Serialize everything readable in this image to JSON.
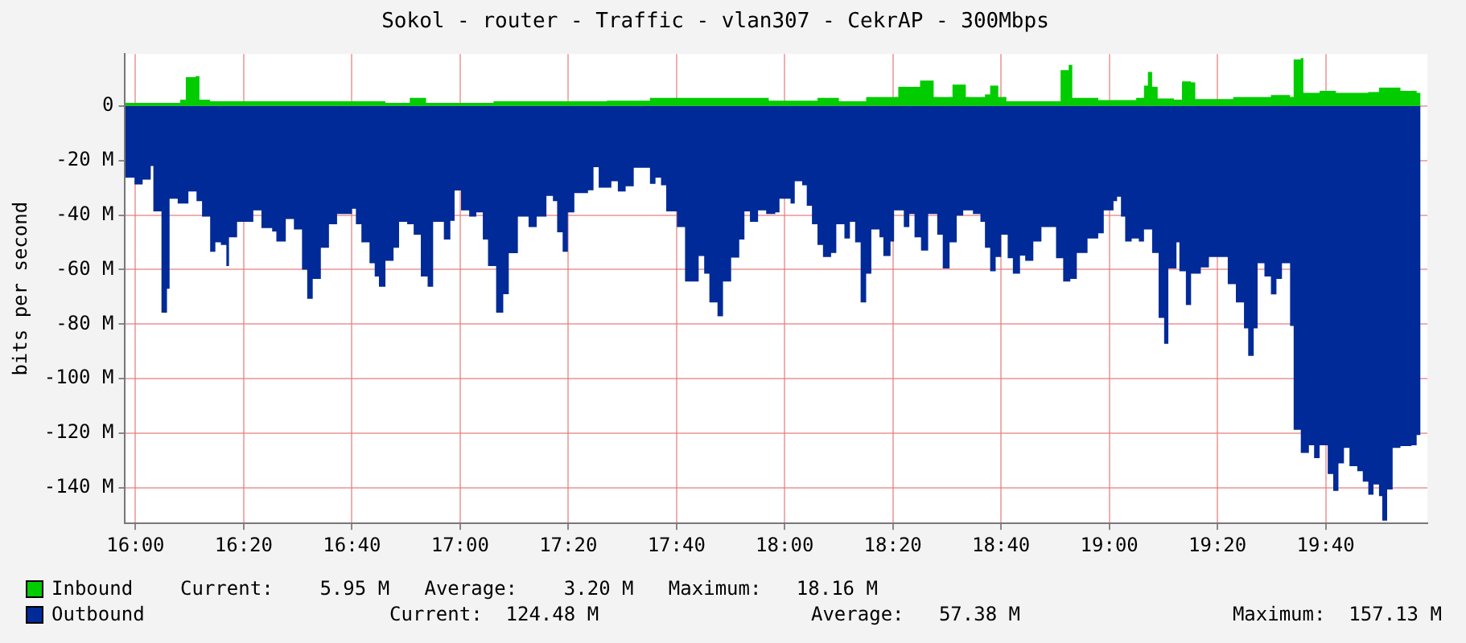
{
  "chart_data": {
    "type": "area",
    "title": "Sokol - router - Traffic - vlan307 - CekrAP - 300Mbps",
    "ylabel": "bits per second",
    "xlim": [
      15.968,
      19.98
    ],
    "ylim": [
      -153,
      19
    ],
    "xticks": [
      {
        "value": 16,
        "label": "16:00"
      },
      {
        "value": 16.3333,
        "label": "16:20"
      },
      {
        "value": 16.6667,
        "label": "16:40"
      },
      {
        "value": 17,
        "label": "17:00"
      },
      {
        "value": 17.3333,
        "label": "17:20"
      },
      {
        "value": 17.6667,
        "label": "17:40"
      },
      {
        "value": 18,
        "label": "18:00"
      },
      {
        "value": 18.3333,
        "label": "18:20"
      },
      {
        "value": 18.6667,
        "label": "18:40"
      },
      {
        "value": 19,
        "label": "19:00"
      },
      {
        "value": 19.3333,
        "label": "19:20"
      },
      {
        "value": 19.6667,
        "label": "19:40"
      }
    ],
    "yticks": [
      {
        "value": -140,
        "label": "-140 M"
      },
      {
        "value": -120,
        "label": "-120 M"
      },
      {
        "value": -100,
        "label": "-100 M"
      },
      {
        "value": -80,
        "label": "-80 M"
      },
      {
        "value": -60,
        "label": "-60 M"
      },
      {
        "value": -40,
        "label": "-40 M"
      },
      {
        "value": -20,
        "label": "-20 M"
      },
      0
    ],
    "grid": true,
    "legend": "bottom",
    "series": [
      {
        "name": "Inbound",
        "color": "#00cc00",
        "x": [
          15.969,
          16.122,
          16.138,
          16.155,
          16.185,
          16.197,
          16.23,
          16.488,
          16.77,
          16.845,
          16.87,
          16.895,
          17.103,
          17.269,
          17.452,
          17.585,
          17.752,
          17.951,
          18.101,
          18.167,
          18.251,
          18.334,
          18.35,
          18.417,
          18.459,
          18.517,
          18.558,
          18.617,
          18.633,
          18.658,
          18.683,
          18.833,
          18.85,
          18.875,
          18.886,
          18.966,
          19.083,
          19.107,
          19.119,
          19.132,
          19.149,
          19.199,
          19.224,
          19.252,
          19.265,
          19.382,
          19.498,
          19.557,
          19.568,
          19.59,
          19.598,
          19.648,
          19.698,
          19.798,
          19.831,
          19.897,
          19.947,
          19.959
        ],
        "values": [
          1.1,
          1.1,
          2.3,
          10.5,
          10.9,
          2.3,
          1.7,
          1.7,
          1.1,
          2.9,
          2.9,
          1.1,
          1.7,
          1.7,
          1.9,
          2.9,
          2.9,
          1.9,
          2.9,
          1.7,
          3.2,
          3.2,
          7,
          9.3,
          3.2,
          7.8,
          3.2,
          4.2,
          7.4,
          3.2,
          1.7,
          1.7,
          13.1,
          15,
          2.9,
          2.1,
          2.9,
          7.4,
          12.4,
          7,
          2.7,
          2.3,
          9,
          8.6,
          2.5,
          3.2,
          4,
          3.2,
          17,
          17.5,
          4.8,
          5.5,
          4.8,
          5.1,
          6.7,
          5.5,
          4.8,
          5.9
        ]
      },
      {
        "name": "Outbound",
        "color": "#002a97",
        "x": [
          15.969,
          15.997,
          16.022,
          16.047,
          16.055,
          16.072,
          16.08,
          16.097,
          16.105,
          16.13,
          16.152,
          16.163,
          16.188,
          16.205,
          16.225,
          16.23,
          16.246,
          16.263,
          16.28,
          16.288,
          16.313,
          16.363,
          16.388,
          16.421,
          16.434,
          16.463,
          16.488,
          16.513,
          16.529,
          16.546,
          16.571,
          16.596,
          16.621,
          16.667,
          16.679,
          16.696,
          16.721,
          16.737,
          16.75,
          16.77,
          16.795,
          16.812,
          16.837,
          16.857,
          16.879,
          16.9,
          16.917,
          16.937,
          16.95,
          16.97,
          16.983,
          17.003,
          17.028,
          17.05,
          17.07,
          17.086,
          17.111,
          17.133,
          17.15,
          17.178,
          17.211,
          17.236,
          17.266,
          17.286,
          17.299,
          17.316,
          17.332,
          17.352,
          17.394,
          17.411,
          17.427,
          17.452,
          17.466,
          17.486,
          17.51,
          17.535,
          17.56,
          17.585,
          17.602,
          17.619,
          17.635,
          17.668,
          17.693,
          17.718,
          17.735,
          17.752,
          17.768,
          17.793,
          17.81,
          17.835,
          17.86,
          17.876,
          17.893,
          17.918,
          17.943,
          17.971,
          17.984,
          18.018,
          18.031,
          18.054,
          18.068,
          18.084,
          18.101,
          18.118,
          18.143,
          18.159,
          18.184,
          18.201,
          18.217,
          18.234,
          18.251,
          18.267,
          18.292,
          18.304,
          18.326,
          18.337,
          18.367,
          18.384,
          18.4,
          18.42,
          18.442,
          18.47,
          18.487,
          18.508,
          18.53,
          18.55,
          18.58,
          18.603,
          18.617,
          18.633,
          18.65,
          18.667,
          18.687,
          18.703,
          18.725,
          18.741,
          18.766,
          18.791,
          18.83,
          18.836,
          18.858,
          18.88,
          18.9,
          18.933,
          18.966,
          18.983,
          19.013,
          19.024,
          19.036,
          19.049,
          19.069,
          19.091,
          19.107,
          19.132,
          19.152,
          19.169,
          19.182,
          19.207,
          19.216,
          19.236,
          19.252,
          19.282,
          19.307,
          19.345,
          19.365,
          19.39,
          19.415,
          19.428,
          19.445,
          19.457,
          19.478,
          19.498,
          19.515,
          19.532,
          19.557,
          19.568,
          19.59,
          19.615,
          19.631,
          19.648,
          19.673,
          19.69,
          19.706,
          19.723,
          19.74,
          19.764,
          19.781,
          19.798,
          19.814,
          19.831,
          19.841,
          19.856,
          19.873,
          19.897,
          19.931,
          19.947,
          19.959
        ],
        "values": [
          -26.3,
          -28.8,
          -27,
          -22,
          -38.7,
          -38.7,
          -75.8,
          -67,
          -34,
          -35.8,
          -35.8,
          -31.4,
          -34.9,
          -40.6,
          -40.6,
          -53.5,
          -50,
          -51,
          -58.7,
          -48.2,
          -42.5,
          -38.3,
          -44.8,
          -46,
          -49.7,
          -41.5,
          -45.3,
          -60,
          -70.7,
          -63.4,
          -52,
          -43.4,
          -39.6,
          -37.7,
          -43.4,
          -50,
          -57.7,
          -62.5,
          -66.3,
          -56.8,
          -52,
          -42.5,
          -43.4,
          -47.2,
          -62.5,
          -66.3,
          -42.5,
          -42.5,
          -49,
          -42.1,
          -31,
          -38.3,
          -40.6,
          -39,
          -49,
          -58.7,
          -75.8,
          -69,
          -54,
          -40.6,
          -44.4,
          -40.6,
          -33,
          -34.9,
          -46.3,
          -53.5,
          -39,
          -32,
          -30.9,
          -22.5,
          -30,
          -30,
          -27.6,
          -31.4,
          -29.5,
          -22.7,
          -22.7,
          -28.6,
          -26.3,
          -29.1,
          -38.7,
          -44.4,
          -64.4,
          -64.4,
          -55,
          -61.5,
          -72,
          -77.1,
          -64.4,
          -55.6,
          -49,
          -38.7,
          -42.5,
          -38.3,
          -39.6,
          -39,
          -34,
          -35.8,
          -27.6,
          -29.1,
          -36.6,
          -43.4,
          -51,
          -55.4,
          -53.9,
          -43.4,
          -48.6,
          -42.5,
          -50,
          -72,
          -61.5,
          -45.3,
          -48.2,
          -55,
          -49.7,
          -38.3,
          -44.4,
          -39.6,
          -48.2,
          -53,
          -39.6,
          -47.2,
          -59.6,
          -50,
          -40.2,
          -38.3,
          -39.6,
          -42.5,
          -52,
          -60.6,
          -55.4,
          -47.2,
          -55.8,
          -61.5,
          -54.9,
          -56.8,
          -49.7,
          -44.4,
          -44.4,
          -55.8,
          -64.4,
          -63.4,
          -53.9,
          -48.6,
          -46.7,
          -38.3,
          -34.9,
          -33.3,
          -40.6,
          -49.7,
          -48.6,
          -49.7,
          -45.3,
          -53.9,
          -77.7,
          -87.2,
          -59.6,
          -50,
          -60.6,
          -73,
          -61.5,
          -59.2,
          -55.4,
          -55.4,
          -65.3,
          -72,
          -81.5,
          -91.6,
          -81.5,
          -57.7,
          -62.5,
          -69.1,
          -63.4,
          -57.7,
          -80.6,
          -118.7,
          -127.2,
          -124.4,
          -129.1,
          -124.4,
          -134.9,
          -141.1,
          -131,
          -125.3,
          -132,
          -133.9,
          -137.7,
          -142.5,
          -138.7,
          -143,
          -152,
          -140.6,
          -125.3,
          -124.7,
          -124.4,
          -120.6,
          -122
        ]
      }
    ],
    "annotations": [
      "Current:    5.95 M   Average:    3.20 M   Maximum:   18.16 M",
      "Current:  124.48 M",
      "Average:   57.38 M",
      "Maximum:  157.13 M"
    ]
  }
}
